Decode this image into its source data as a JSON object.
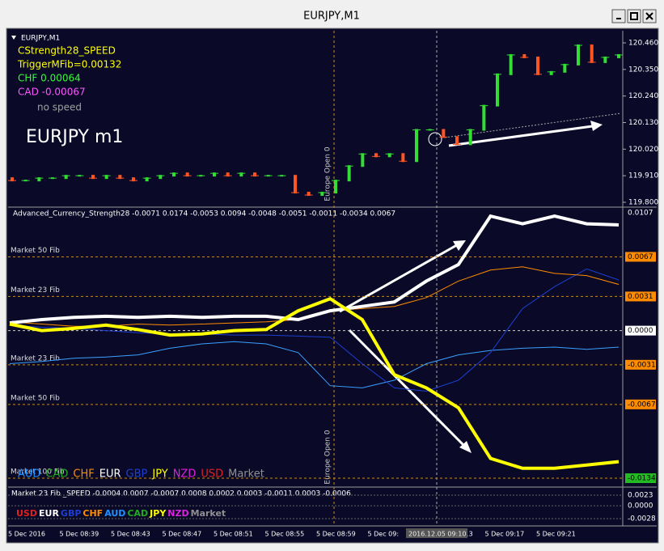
{
  "window": {
    "title": "EURJPY,M1"
  },
  "price_panel": {
    "symbol": "EURJPY,M1",
    "labels": [
      {
        "text": "CStrength28_SPEED",
        "color": "#ffff00"
      },
      {
        "text": "TriggerMFib=0.00132",
        "color": "#ffff00"
      },
      {
        "text": "CHF 0.00064",
        "color": "#33ff33"
      },
      {
        "text": "CAD -0.00067",
        "color": "#ff55ff"
      },
      {
        "text": "no speed",
        "color": "#a0a0a0"
      }
    ],
    "big_label": "EURJPY m1",
    "europe_open": "Europe Open 0",
    "ylim": [
      119.8,
      120.46
    ],
    "yticks": [
      {
        "value": 120.46,
        "label": "120.460"
      },
      {
        "value": 120.35,
        "label": "120.350"
      },
      {
        "value": 120.24,
        "label": "120.240"
      },
      {
        "value": 120.13,
        "label": "120.130"
      },
      {
        "value": 120.02,
        "label": "120.020"
      },
      {
        "value": 119.91,
        "label": "119.910"
      },
      {
        "value": 119.8,
        "label": "119.800"
      }
    ],
    "candles": [
      [
        119.9,
        119.89
      ],
      [
        119.89,
        119.89
      ],
      [
        119.89,
        119.9
      ],
      [
        119.9,
        119.9
      ],
      [
        119.9,
        119.91
      ],
      [
        119.91,
        119.91
      ],
      [
        119.91,
        119.9
      ],
      [
        119.9,
        119.91
      ],
      [
        119.91,
        119.9
      ],
      [
        119.9,
        119.89
      ],
      [
        119.89,
        119.9
      ],
      [
        119.9,
        119.91
      ],
      [
        119.91,
        119.92
      ],
      [
        119.92,
        119.91
      ],
      [
        119.91,
        119.91
      ],
      [
        119.91,
        119.92
      ],
      [
        119.92,
        119.91
      ],
      [
        119.91,
        119.92
      ],
      [
        119.92,
        119.91
      ],
      [
        119.91,
        119.91
      ],
      [
        119.91,
        119.91
      ],
      [
        119.91,
        119.84
      ],
      [
        119.84,
        119.83
      ],
      [
        119.83,
        119.84
      ],
      [
        119.84,
        119.89
      ],
      [
        119.89,
        119.95
      ],
      [
        119.95,
        120.0
      ],
      [
        120.0,
        119.99
      ],
      [
        119.99,
        120.0
      ],
      [
        120.0,
        119.97
      ],
      [
        119.97,
        120.1
      ],
      [
        120.1,
        120.1
      ],
      [
        120.1,
        120.07
      ],
      [
        120.07,
        120.04
      ],
      [
        120.04,
        120.1
      ],
      [
        120.1,
        120.2
      ],
      [
        120.2,
        120.33
      ],
      [
        120.33,
        120.41
      ],
      [
        120.41,
        120.4
      ],
      [
        120.4,
        120.33
      ],
      [
        120.33,
        120.34
      ],
      [
        120.34,
        120.37
      ],
      [
        120.37,
        120.45
      ],
      [
        120.45,
        120.38
      ],
      [
        120.38,
        120.4
      ],
      [
        120.4,
        120.41
      ]
    ]
  },
  "indicator_panel": {
    "header": "Advanced_Currency_Strength28  -0.0071 0.0174 -0.0053 0.0094 -0.0048 -0.0051 -0.0011 -0.0034 0.0067",
    "ylim": [
      -0.0134,
      0.0107
    ],
    "fibs": [
      {
        "value": 0.0067,
        "label": "Market 50 Fib"
      },
      {
        "value": 0.0031,
        "label": "Market 23 Fib"
      },
      {
        "value": 0,
        "label": "0"
      },
      {
        "value": -0.0031,
        "label": "Market 23 Fib"
      },
      {
        "value": -0.0067,
        "label": "Market 50 Fib"
      },
      {
        "value": -0.0134,
        "label": "Market 100 Fib"
      }
    ],
    "levels": [
      {
        "value": 0.0107,
        "label": "0.0107"
      },
      {
        "value": 0.0067,
        "label": "0.0067"
      },
      {
        "value": 0.0031,
        "label": "0.0031"
      },
      {
        "value": 0,
        "label": "0.0000"
      },
      {
        "value": -0.0031,
        "label": "-0.0031"
      },
      {
        "value": -0.0067,
        "label": "-0.0067"
      },
      {
        "value": -0.0134,
        "label": "-0.0134"
      }
    ],
    "legend": [
      {
        "name": "AUD",
        "color": "#1e90ff"
      },
      {
        "name": "CAD",
        "color": "#22aa22"
      },
      {
        "name": "CHF",
        "color": "#ff8c00"
      },
      {
        "name": "EUR",
        "color": "#ffffff"
      },
      {
        "name": "GBP",
        "color": "#1c3fd0"
      },
      {
        "name": "JPY",
        "color": "#ffff00"
      },
      {
        "name": "NZD",
        "color": "#dd22dd"
      },
      {
        "name": "USD",
        "color": "#dd2222"
      },
      {
        "name": "Market",
        "color": "#909090"
      }
    ],
    "series": [
      {
        "name": "AUD",
        "color": "#3aa0ff",
        "width": 1,
        "values": [
          -0.003,
          -0.0028,
          -0.0025,
          -0.0024,
          -0.0022,
          -0.0016,
          -0.0012,
          -0.001,
          -0.0012,
          -0.002,
          -0.005,
          -0.0052,
          -0.0045,
          -0.003,
          -0.0022,
          -0.0018,
          -0.0016,
          -0.0015,
          -0.0017,
          -0.0015
        ]
      },
      {
        "name": "GBP",
        "color": "#1c3fd0",
        "width": 1,
        "values": [
          0.0005,
          0.0003,
          0.0002,
          0,
          -0.0002,
          -0.0003,
          -0.0003,
          -0.0004,
          -0.0004,
          -0.0005,
          -0.0006,
          -0.003,
          -0.0052,
          -0.0055,
          -0.0045,
          -0.002,
          0.002,
          0.004,
          0.0056,
          0.0046
        ]
      },
      {
        "name": "CHF",
        "color": "#ff8c00",
        "width": 1,
        "values": [
          0.0008,
          0.0006,
          0.0004,
          0.0004,
          0.0006,
          0.0005,
          0.0006,
          0.0007,
          0.0008,
          0.001,
          0.0018,
          0.002,
          0.0022,
          0.003,
          0.0045,
          0.0055,
          0.0058,
          0.0052,
          0.005,
          0.0042
        ]
      },
      {
        "name": "EUR",
        "color": "#ffffff",
        "width": 4,
        "values": [
          0.0007,
          0.001,
          0.0012,
          0.0013,
          0.0012,
          0.0013,
          0.0012,
          0.0013,
          0.0013,
          0.001,
          0.0018,
          0.0022,
          0.0026,
          0.0045,
          0.006,
          0.0104,
          0.0097,
          0.0104,
          0.0097,
          0.0096
        ]
      },
      {
        "name": "JPY",
        "color": "#ffff00",
        "width": 4,
        "values": [
          0.0006,
          0,
          0.0002,
          0.0005,
          0.0001,
          -0.0004,
          -0.0003,
          0,
          0.0001,
          0.0018,
          0.0029,
          0.001,
          -0.004,
          -0.0052,
          -0.007,
          -0.0116,
          -0.0125,
          -0.0125,
          -0.0122,
          -0.0119
        ]
      }
    ]
  },
  "speed_panel": {
    "header": "Market 23 Fib  _SPEED -0.0004 0.0007 -0.0007 0.0008 0.0002 0.0003 -0.0011 0.0003 -0.0006",
    "ylim": [
      -0.0028,
      0.0023
    ],
    "levels": [
      {
        "value": 0.0023,
        "label": "0.0023"
      },
      {
        "value": 0,
        "label": "0.0000"
      },
      {
        "value": -0.0028,
        "label": "-0.0028"
      }
    ],
    "legend": [
      {
        "name": "USD",
        "color": "#dd2222"
      },
      {
        "name": "EUR",
        "color": "#ffffff"
      },
      {
        "name": "GBP",
        "color": "#1c3fd0"
      },
      {
        "name": "CHF",
        "color": "#ff8c00"
      },
      {
        "name": "AUD",
        "color": "#1e90ff"
      },
      {
        "name": "CAD",
        "color": "#22aa22"
      },
      {
        "name": "JPY",
        "color": "#ffff00"
      },
      {
        "name": "NZD",
        "color": "#dd22dd"
      },
      {
        "name": "Market",
        "color": "#909090"
      }
    ]
  },
  "time_axis": {
    "labels": [
      "5 Dec 2016",
      "5 Dec 08:39",
      "5 Dec 08:43",
      "5 Dec 08:47",
      "5 Dec 08:51",
      "5 Dec 08:55",
      "5 Dec 08:59",
      "5 Dec 09:",
      "5 Dec 09:13",
      "5 Dec 09:17",
      "5 Dec 09:21"
    ],
    "cursor": "2016.12.05 09:10"
  }
}
